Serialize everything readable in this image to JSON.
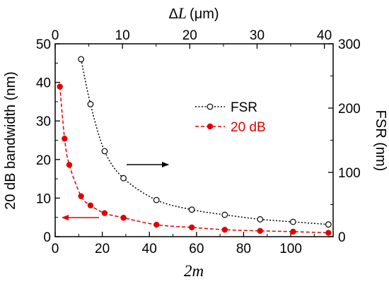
{
  "chart_data": {
    "type": "line",
    "title": "",
    "bottom_axis": {
      "label": "2m",
      "range": [
        0,
        118
      ],
      "ticks": [
        0,
        20,
        40,
        60,
        80,
        100
      ]
    },
    "top_axis": {
      "label_symbol": "Δ",
      "label_var": "L",
      "label_unit": "(μm)",
      "range": [
        0,
        41.3
      ],
      "ticks": [
        0,
        10,
        20,
        30,
        40
      ]
    },
    "left_axis": {
      "label": "20 dB bandwidth (nm)",
      "range": [
        0,
        50
      ],
      "ticks": [
        0,
        10,
        20,
        30,
        40,
        50
      ]
    },
    "right_axis": {
      "label": "FSR (nm)",
      "range": [
        0,
        300
      ],
      "ticks": [
        0,
        100,
        200,
        300
      ]
    },
    "series": [
      {
        "name": "FSR",
        "axis": "right",
        "color": "#000000",
        "marker": "open-circle",
        "line": "dotted",
        "x": [
          11,
          15,
          21,
          29,
          43,
          58,
          72,
          87,
          101,
          116
        ],
        "y": [
          276,
          206,
          133,
          91,
          57,
          42,
          34,
          27,
          23,
          19
        ]
      },
      {
        "name": "20 dB",
        "axis": "left",
        "color": "#e00000",
        "marker": "filled-circle",
        "line": "dashed",
        "x": [
          2,
          4,
          6,
          11,
          15,
          21,
          29,
          43,
          58,
          72,
          87,
          101,
          116
        ],
        "y": [
          38.9,
          25.4,
          18.6,
          10.5,
          8.1,
          6.1,
          4.9,
          3.1,
          2.4,
          1.8,
          1.5,
          1.3,
          1.0
        ]
      }
    ],
    "legend": {
      "position": "center-right",
      "entries": [
        "FSR",
        "20 dB"
      ]
    },
    "annotations": [
      {
        "type": "arrow",
        "direction": "right",
        "color": "#000000",
        "meaning": "FSR uses right axis"
      },
      {
        "type": "arrow",
        "direction": "left",
        "color": "#e00000",
        "meaning": "20 dB uses left axis"
      }
    ],
    "grid": false
  }
}
